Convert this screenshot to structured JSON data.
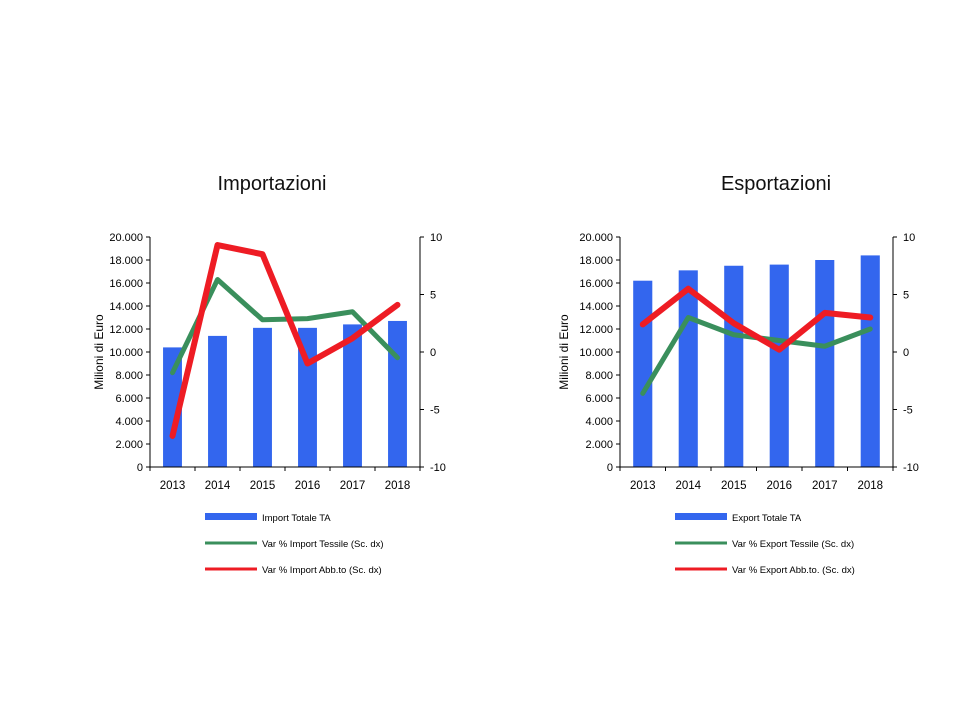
{
  "chart_data": [
    {
      "type": "bar",
      "title": "Importazioni",
      "ylabel": "Milioni di Euro",
      "categories": [
        "2013",
        "2014",
        "2015",
        "2016",
        "2017",
        "2018"
      ],
      "y_ticks": [
        "0",
        "2.000",
        "4.000",
        "6.000",
        "8.000",
        "10.000",
        "12.000",
        "14.000",
        "16.000",
        "18.000",
        "20.000"
      ],
      "ylim": [
        0,
        20000
      ],
      "y2_ticks": [
        "-10",
        "-5",
        "0",
        "5",
        "10"
      ],
      "y2lim": [
        -10,
        10
      ],
      "series": [
        {
          "name": "Import Totale TA",
          "type": "bar",
          "axis": "left",
          "color": "#3366ee",
          "values": [
            10400,
            11400,
            12100,
            12100,
            12400,
            12700
          ]
        },
        {
          "name": "Var % Import Tessile (Sc. dx)",
          "type": "line",
          "axis": "right",
          "color": "#3a8f5c",
          "values": [
            -1.8,
            6.3,
            2.8,
            2.9,
            3.5,
            -0.5
          ]
        },
        {
          "name": "Var % Import Abb.to (Sc. dx)",
          "type": "line",
          "axis": "right",
          "color": "#ee1c24",
          "values": [
            -7.3,
            9.3,
            8.5,
            -1.0,
            1.2,
            4.1
          ]
        }
      ],
      "grid": false,
      "legend": "bottom"
    },
    {
      "type": "bar",
      "title": "Esportazioni",
      "ylabel": "Milioni di Euro",
      "categories": [
        "2013",
        "2014",
        "2015",
        "2016",
        "2017",
        "2018"
      ],
      "y_ticks": [
        "0",
        "2.000",
        "4.000",
        "6.000",
        "8.000",
        "10.000",
        "12.000",
        "14.000",
        "16.000",
        "18.000",
        "20.000"
      ],
      "ylim": [
        0,
        20000
      ],
      "y2_ticks": [
        "-10",
        "-5",
        "0",
        "5",
        "10"
      ],
      "y2lim": [
        -10,
        10
      ],
      "series": [
        {
          "name": "Export Totale TA",
          "type": "bar",
          "axis": "left",
          "color": "#3366ee",
          "values": [
            16200,
            17100,
            17500,
            17600,
            18000,
            18400
          ]
        },
        {
          "name": "Var % Export Tessile (Sc. dx)",
          "type": "line",
          "axis": "right",
          "color": "#3a8f5c",
          "values": [
            -3.6,
            3.0,
            1.5,
            1.0,
            0.5,
            2.0
          ]
        },
        {
          "name": "Var % Export Abb.to. (Sc. dx)",
          "type": "line",
          "axis": "right",
          "color": "#ee1c24",
          "values": [
            2.4,
            5.5,
            2.5,
            0.2,
            3.4,
            3.0
          ]
        }
      ],
      "grid": false,
      "legend": "bottom"
    }
  ]
}
